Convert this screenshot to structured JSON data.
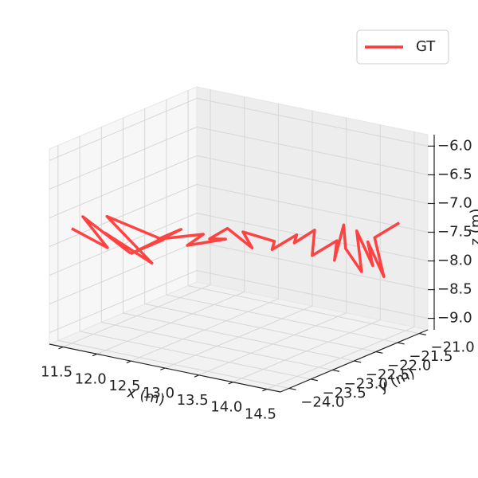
{
  "chart_data": {
    "type": "line3d",
    "xlabel": "x (m)",
    "ylabel": "y (m)",
    "zlabel": "z (m)",
    "xlim": [
      11.3,
      14.7
    ],
    "ylim": [
      -24.2,
      -20.8
    ],
    "zlim": [
      -9.2,
      -5.8
    ],
    "xticks": [
      {
        "value": 11.5,
        "label": "11.5"
      },
      {
        "value": 12,
        "label": "12.0"
      },
      {
        "value": 12.5,
        "label": "12.5"
      },
      {
        "value": 13,
        "label": "13.0"
      },
      {
        "value": 13.5,
        "label": "13.5"
      },
      {
        "value": 14,
        "label": "14.0"
      },
      {
        "value": 14.5,
        "label": "14.5"
      }
    ],
    "yticks": [
      {
        "value": -24,
        "label": "−24.0"
      },
      {
        "value": -23.5,
        "label": "−23.5"
      },
      {
        "value": -23,
        "label": "−23.0"
      },
      {
        "value": -22.5,
        "label": "−22.5"
      },
      {
        "value": -22,
        "label": "−22.0"
      },
      {
        "value": -21.5,
        "label": "−21.5"
      },
      {
        "value": -21,
        "label": "−21.0"
      }
    ],
    "zticks": [
      {
        "value": -9,
        "label": "−9.0"
      },
      {
        "value": -8.5,
        "label": "−8.5"
      },
      {
        "value": -8,
        "label": "−8.0"
      },
      {
        "value": -7.5,
        "label": "−7.5"
      },
      {
        "value": -7,
        "label": "−7.0"
      },
      {
        "value": -6.5,
        "label": "−6.5"
      },
      {
        "value": -6,
        "label": "−6.0"
      }
    ],
    "grid": true,
    "legend": "upper right",
    "series": [
      {
        "name": "GT",
        "color": "#ff3838",
        "x": [
          11.5,
          11.9,
          11.6,
          12.1,
          11.8,
          12.3,
          11.7,
          12.4,
          12.0,
          12.6,
          12.2,
          12.8,
          12.5,
          13.0,
          12.7,
          12.9,
          13.2,
          13.0,
          13.4,
          13.3,
          13.6,
          13.5,
          13.8,
          13.7,
          14.0,
          13.9,
          14.1,
          14.0,
          14.3,
          14.1,
          14.4,
          14.2,
          14.5,
          14.3,
          14.6
        ],
        "y": [
          -24.0,
          -23.8,
          -23.9,
          -23.6,
          -23.7,
          -23.4,
          -23.5,
          -23.3,
          -23.4,
          -23.2,
          -23.1,
          -23.0,
          -22.9,
          -22.8,
          -22.7,
          -22.6,
          -22.5,
          -22.4,
          -22.3,
          -22.2,
          -22.1,
          -22.0,
          -22.0,
          -21.9,
          -21.8,
          -21.7,
          -21.8,
          -21.6,
          -21.7,
          -21.5,
          -21.6,
          -21.4,
          -21.5,
          -21.4,
          -21.3
        ],
        "z": [
          -7.2,
          -7.5,
          -7.0,
          -7.6,
          -7.3,
          -7.8,
          -7.1,
          -7.4,
          -7.7,
          -7.2,
          -7.5,
          -7.3,
          -7.6,
          -7.4,
          -7.5,
          -7.3,
          -7.6,
          -7.4,
          -7.5,
          -7.7,
          -7.4,
          -7.6,
          -7.3,
          -7.8,
          -7.5,
          -7.9,
          -7.2,
          -7.7,
          -8.0,
          -7.4,
          -7.9,
          -7.6,
          -8.1,
          -7.5,
          -7.2
        ]
      }
    ]
  }
}
